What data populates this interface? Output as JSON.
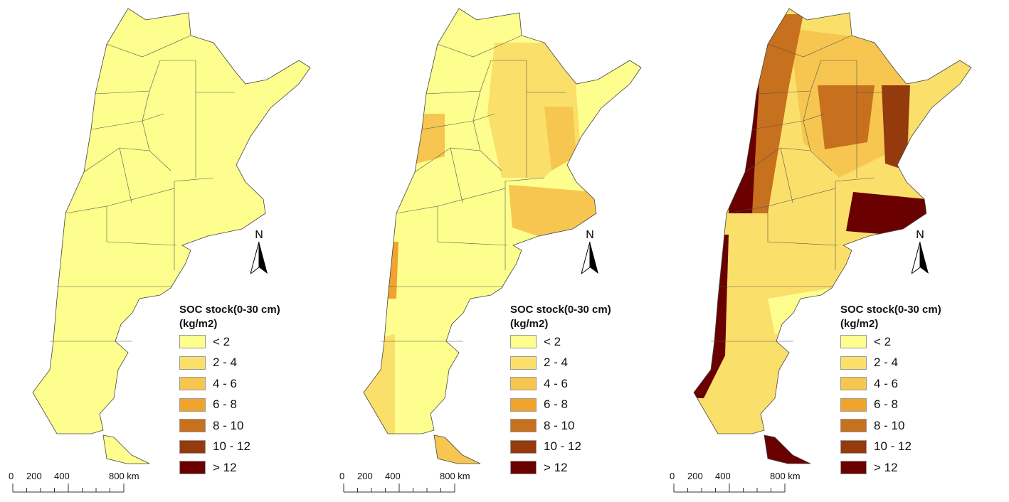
{
  "legend": {
    "title_line1": "SOC stock(0-30 cm)",
    "title_line2": "(kg/m2)",
    "classes": [
      {
        "label": "< 2",
        "color": "#FEFE8E"
      },
      {
        "label": "2 - 4",
        "color": "#FAE06A"
      },
      {
        "label": "4 - 6",
        "color": "#F6C650"
      },
      {
        "label": "6 - 8",
        "color": "#F0A42E"
      },
      {
        "label": "8 - 10",
        "color": "#C7701E"
      },
      {
        "label": "10 - 12",
        "color": "#943A0D"
      },
      {
        "label": "> 12",
        "color": "#6A0000"
      }
    ]
  },
  "north_arrow": {
    "label": "N"
  },
  "scale_bar": {
    "labels": [
      "0",
      "200",
      "400",
      "800 km"
    ]
  },
  "panels": [
    {
      "dominant_class": "< 2"
    },
    {
      "dominant_class": "< 2"
    },
    {
      "dominant_class": "2 - 4"
    }
  ]
}
